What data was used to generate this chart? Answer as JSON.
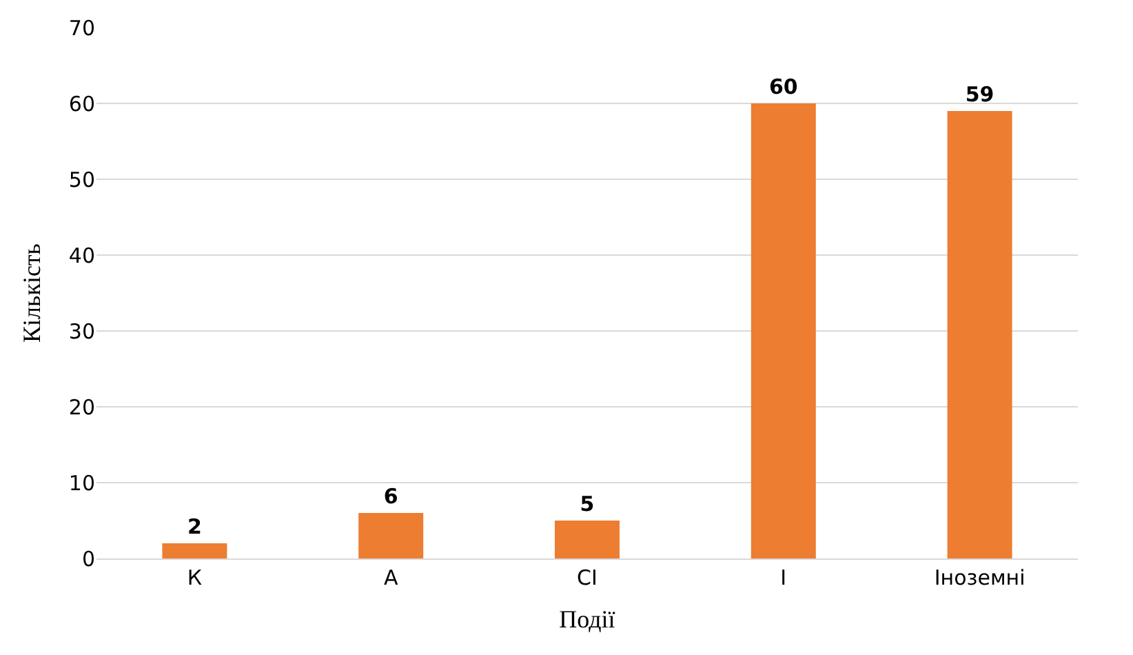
{
  "chart_data": {
    "type": "bar",
    "xlabel": "Події",
    "ylabel": "Кількість",
    "categories": [
      "К",
      "А",
      "СІ",
      "І",
      "Іноземні"
    ],
    "values": [
      2,
      6,
      5,
      60,
      59
    ],
    "color": "#ed7d31",
    "ylim": [
      0,
      70
    ],
    "yticks": [
      0,
      10,
      20,
      30,
      40,
      50,
      60,
      70
    ],
    "grid": "y",
    "data_labels": true,
    "legend": false
  }
}
